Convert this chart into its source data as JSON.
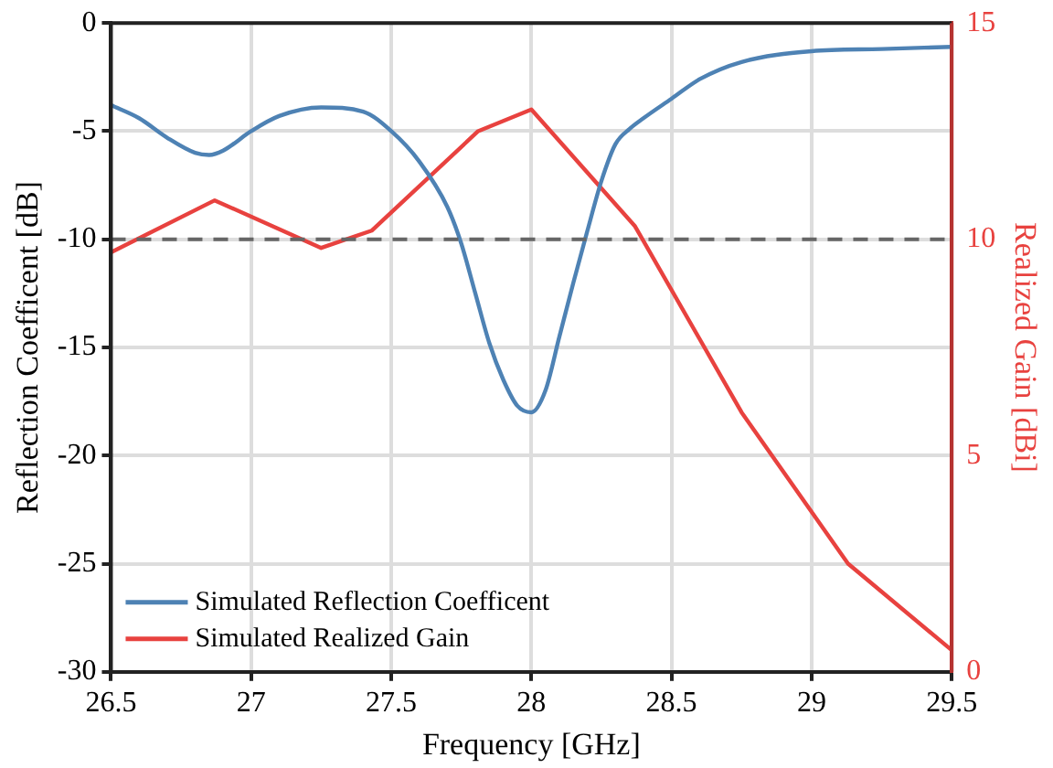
{
  "chart_data": {
    "type": "line",
    "xlabel": "Frequency [GHz]",
    "ylabel": "Reflection Coefficent [dB]",
    "y2label": "Realized Gain [dBi]",
    "xlim": [
      26.5,
      29.5
    ],
    "xticks": [
      26.5,
      27,
      27.5,
      28,
      28.5,
      29,
      29.5
    ],
    "ylim": [
      -30,
      0
    ],
    "yticks": [
      -30,
      -25,
      -20,
      -15,
      -10,
      -5,
      0
    ],
    "y2lim": [
      0,
      15
    ],
    "y2ticks": [
      0,
      5,
      10,
      15
    ],
    "grid": true,
    "legend": "bottom left",
    "marker": "none",
    "ref_lines": [
      {
        "axis": "y",
        "value": -10,
        "color": "#666666",
        "line_style": "dashed"
      }
    ],
    "series": [
      {
        "name": "Simulated Reflection Coefficent",
        "color": "#4e82b4",
        "x": [
          26.5,
          26.6,
          26.7,
          26.8,
          26.85,
          26.9,
          27.0,
          27.1,
          27.25,
          27.4,
          27.5,
          27.6,
          27.7,
          27.75,
          27.8,
          27.85,
          27.9,
          27.95,
          28.0,
          28.05,
          28.1,
          28.15,
          28.2,
          28.25,
          28.3,
          28.35,
          28.4,
          28.5,
          28.6,
          28.75,
          29.0,
          29.25,
          29.5
        ],
        "values": [
          -3.8,
          -4.4,
          -5.3,
          -6.0,
          -6.1,
          -5.9,
          -5.0,
          -4.3,
          -3.9,
          -4.1,
          -5.0,
          -6.4,
          -8.5,
          -10.2,
          -12.5,
          -14.8,
          -16.5,
          -17.7,
          -18.0,
          -17.0,
          -14.5,
          -12.0,
          -9.6,
          -7.3,
          -5.6,
          -4.9,
          -4.4,
          -3.5,
          -2.6,
          -1.8,
          -1.3,
          -1.2,
          -1.1
        ]
      },
      {
        "name": "Simulated Realized Gain",
        "color": "#e8423f",
        "axis": "y2",
        "x": [
          26.5,
          26.87,
          27.25,
          27.43,
          27.81,
          28.0,
          28.37,
          28.75,
          29.13,
          29.5
        ],
        "values": [
          9.7,
          10.9,
          9.8,
          10.2,
          12.5,
          13.0,
          10.3,
          6.0,
          2.5,
          0.5
        ]
      }
    ]
  }
}
